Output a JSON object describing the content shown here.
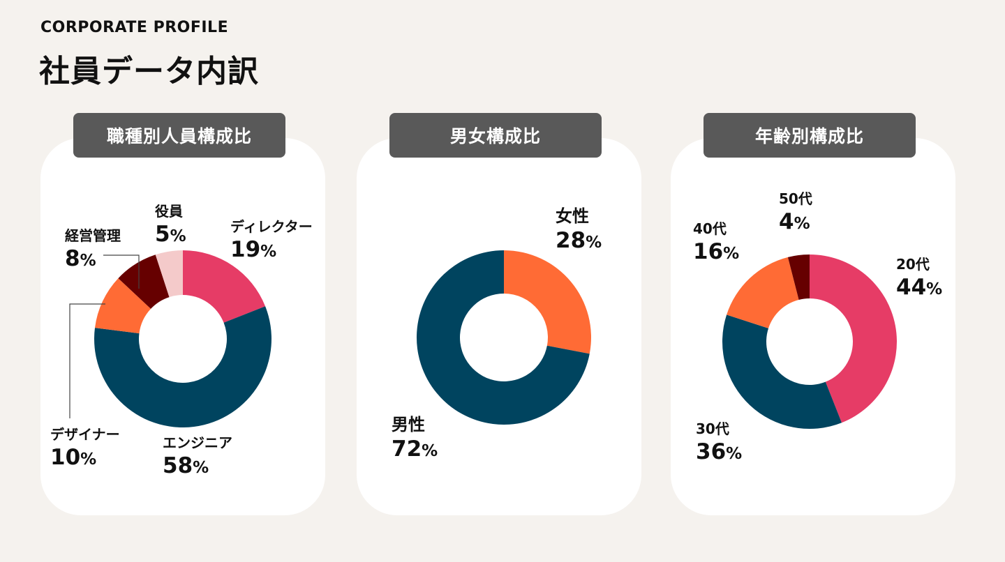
{
  "header": {
    "eyebrow": "CORPORATE PROFILE",
    "title": "社員データ内訳"
  },
  "colors": {
    "background": "#f5f2ee",
    "card": "#ffffff",
    "header_bg": "#595959",
    "pink": "#e63c66",
    "navy": "#00445f",
    "orange": "#ff6b35",
    "maroon": "#660000",
    "light_pink": "#f4caca"
  },
  "chart_data": [
    {
      "type": "pie",
      "title": "職種別人員構成比",
      "slices": [
        {
          "label": "ディレクター",
          "value": 19,
          "color": "#e63c66"
        },
        {
          "label": "エンジニア",
          "value": 58,
          "color": "#00445f"
        },
        {
          "label": "デザイナー",
          "value": 10,
          "color": "#ff6b35"
        },
        {
          "label": "経営管理",
          "value": 8,
          "color": "#660000"
        },
        {
          "label": "役員",
          "value": 5,
          "color": "#f4caca"
        }
      ]
    },
    {
      "type": "pie",
      "title": "男女構成比",
      "slices": [
        {
          "label": "女性",
          "value": 28,
          "color": "#ff6b35"
        },
        {
          "label": "男性",
          "value": 72,
          "color": "#00445f"
        }
      ]
    },
    {
      "type": "pie",
      "title": "年齢別構成比",
      "slices": [
        {
          "label": "20代",
          "value": 44,
          "color": "#e63c66"
        },
        {
          "label": "30代",
          "value": 36,
          "color": "#00445f"
        },
        {
          "label": "40代",
          "value": 16,
          "color": "#ff6b35"
        },
        {
          "label": "50代",
          "value": 4,
          "color": "#660000"
        }
      ]
    }
  ]
}
